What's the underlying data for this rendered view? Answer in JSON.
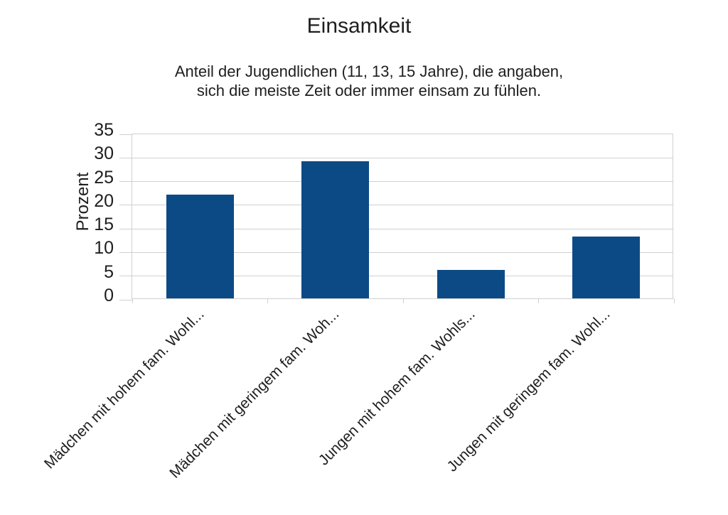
{
  "chart_data": {
    "type": "bar",
    "title": "Einsamkeit",
    "subtitle_lines": [
      "Anteil der Jugendlichen (11, 13, 15 Jahre), die angaben,",
      "sich die meiste Zeit oder immer einsam zu fühlen."
    ],
    "categories": [
      "Mädchen mit hohem fam. Wohl...",
      "Mädchen mit geringem fam. Woh...",
      "Jungen mit hohem fam. Wohls...",
      "Jungen mit geringem fam. Wohl..."
    ],
    "values": [
      22,
      29,
      6,
      13
    ],
    "xlabel": "",
    "ylabel": "Prozent",
    "ylim": [
      0,
      35
    ],
    "yticks": [
      0,
      5,
      10,
      15,
      20,
      25,
      30,
      35
    ],
    "grid": true,
    "legend": "none",
    "colors": {
      "bar": "#0c4a85",
      "grid": "#d0d0d0",
      "text": "#1e1e1e"
    }
  }
}
